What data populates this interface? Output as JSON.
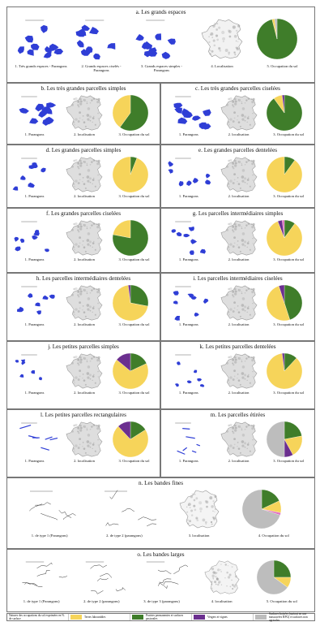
{
  "colors": {
    "blue": "#2f3ed6",
    "green": "#3f7d2a",
    "yellow": "#f6d45a",
    "purple": "#6b2f8f",
    "gray": "#bdbdbd",
    "map": "#dedede"
  },
  "sections": {
    "a": {
      "title": "a. Les grands espaces",
      "captions": [
        "1. Très grands espaces - Parangons",
        "2. Grands espaces ciselés - Parangons",
        "3. Grands espaces simples - Parangons",
        "4. Localisation",
        "5. Occupation du sol"
      ],
      "pie": [
        0.96,
        0.02,
        0,
        0,
        0.02
      ]
    },
    "b": {
      "title": "b. Les très grandes parcelles simples",
      "captions": [
        "1. Parangons",
        "2. localisation",
        "3. Occupation du sol"
      ],
      "pie": [
        0.6,
        0.4,
        0,
        0,
        0
      ]
    },
    "c": {
      "title": "c. Les très grandes parcelles ciselées",
      "captions": [
        "1. Parangons",
        "2. localisation",
        "3. Occupation du sol"
      ],
      "pie": [
        0.9,
        0.08,
        0.02,
        0,
        0
      ]
    },
    "d": {
      "title": "d. Les grandes parcelles simples",
      "captions": [
        "1. Parangons",
        "2. localisation",
        "3. Occupation du sol"
      ],
      "pie": [
        0.06,
        0.94,
        0,
        0,
        0
      ]
    },
    "e": {
      "title": "e. Les grandes parcelles dentelées",
      "captions": [
        "1. Parangons",
        "2. localisation",
        "3. Occupation du sol"
      ],
      "pie": [
        0.1,
        0.9,
        0,
        0,
        0
      ]
    },
    "f": {
      "title": "f. Les grandes parcelles ciselées",
      "captions": [
        "1. Parangons",
        "2. localisation",
        "3. Occupation du sol"
      ],
      "pie": [
        0.78,
        0.22,
        0,
        0,
        0
      ]
    },
    "g": {
      "title": "g. Les parcelles intermédiaires simples",
      "captions": [
        "1. Parangons",
        "2. localisation",
        "3. Occupation du sol"
      ],
      "pie": [
        0.1,
        0.84,
        0.04,
        0.02,
        0
      ]
    },
    "h": {
      "title": "h. Les parcelles intermédiaires dentelées",
      "captions": [
        "1. Parangons",
        "2. localisation",
        "3. Occupation du sol"
      ],
      "pie": [
        0.28,
        0.7,
        0.02,
        0,
        0
      ]
    },
    "i": {
      "title": "i. Les parcelles intermédiaires ciselées",
      "captions": [
        "1. Parangons",
        "2. localisation",
        "3. Occupation du sol"
      ],
      "pie": [
        0.45,
        0.5,
        0.05,
        0,
        0
      ]
    },
    "j": {
      "title": "j. Les petites parcelles simples",
      "captions": [
        "1. Parangons",
        "2. localisation",
        "3. Occupation du sol"
      ],
      "pie": [
        0.18,
        0.68,
        0.14,
        0,
        0
      ]
    },
    "k": {
      "title": "k. Les petites parcelles dentelées",
      "captions": [
        "1. Parangons",
        "2. localisation",
        "3. Occupation du sol"
      ],
      "pie": [
        0.12,
        0.86,
        0.02,
        0,
        0
      ]
    },
    "l": {
      "title": "l. Les petites parcelles rectangulaires",
      "captions": [
        "1. Parangons",
        "2. localisation",
        "3. Occupation du sol"
      ],
      "pie": [
        0.16,
        0.72,
        0.12,
        0,
        0
      ]
    },
    "m": {
      "title": "m. Les parcelles étirées",
      "captions": [
        "1. Parangons",
        "2. localisation",
        "3. Occupation du sol"
      ],
      "pie": [
        0.22,
        0.2,
        0.08,
        0,
        0.5
      ]
    },
    "n": {
      "title": "n. Les bandes fines",
      "captions": [
        "1. de type 1 (Parangons)",
        "2. de type 2 (parangons)",
        "3. localisation",
        "4. Occupation du sol"
      ],
      "pie": [
        0.18,
        0.1,
        0,
        0.02,
        0.7
      ]
    },
    "o": {
      "title": "o. Les bandes larges",
      "captions": [
        "1. de type 1 (Parangons)",
        "2. de type 2 (parangons)",
        "3. de type 3 (parangons)",
        "4. localisation",
        "5. Occupation du sol"
      ],
      "pie": [
        0.25,
        0.1,
        0,
        0,
        0.65
      ]
    }
  },
  "legend": [
    {
      "label": "Natures des occupations du sol exprimées en % de surface",
      "color": ""
    },
    {
      "label": "Terres labourables",
      "color": "#f6d45a"
    },
    {
      "label": "Prairies permanentes et surfaces pastorales",
      "color": "#3f7d2a"
    },
    {
      "label": "Vergers et vignes",
      "color": "#6b2f8f"
    },
    {
      "label": "Surfaces boisées (surtout en une massacrées RPG) et surfaces non agricoles",
      "color": "#bdbdbd"
    }
  ]
}
